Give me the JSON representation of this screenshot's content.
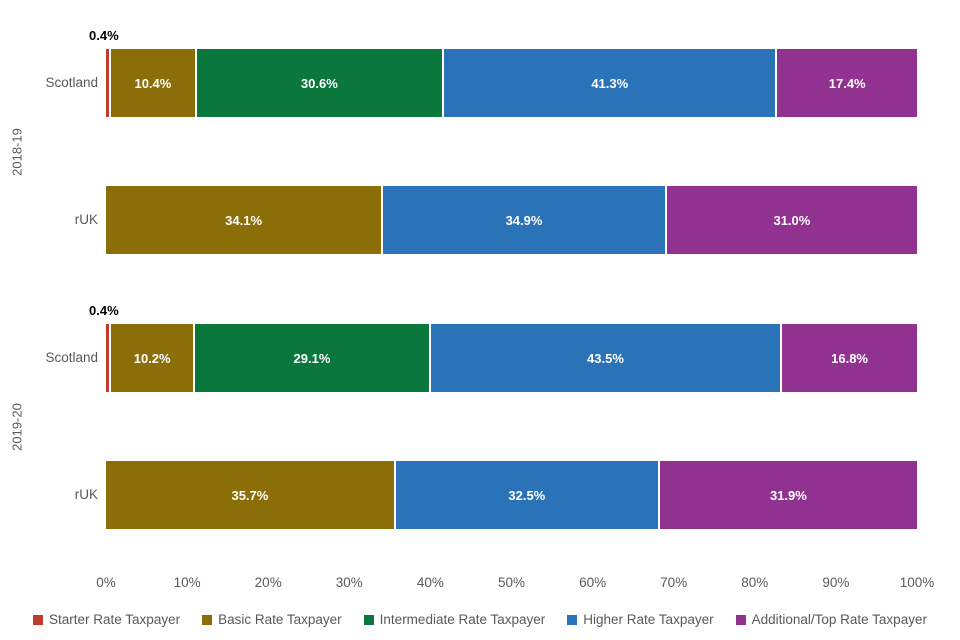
{
  "chart_data": {
    "type": "bar",
    "subtype": "horizontal-stacked",
    "title": "",
    "x_axis": {
      "ticks": [
        "0%",
        "10%",
        "20%",
        "30%",
        "40%",
        "50%",
        "60%",
        "70%",
        "80%",
        "90%",
        "100%"
      ],
      "min": 0,
      "max": 100,
      "unit": "percent",
      "grid": false
    },
    "series": [
      {
        "name": "Starter Rate Taxpayer",
        "color": "#c33c2b"
      },
      {
        "name": "Basic Rate Taxpayer",
        "color": "#8c6e08"
      },
      {
        "name": "Intermediate Rate Taxpayer",
        "color": "#0a783c"
      },
      {
        "name": "Higher Rate Taxpayer",
        "color": "#2b73b8"
      },
      {
        "name": "Additional/Top Rate Taxpayer",
        "color": "#913291"
      }
    ],
    "groups": [
      {
        "label": "2018-19",
        "rows": [
          {
            "label": "Scotland",
            "segments": [
              {
                "series": 0,
                "value": 0.4,
                "label": "0.4%",
                "label_position": "above"
              },
              {
                "series": 1,
                "value": 10.4,
                "label": "10.4%"
              },
              {
                "series": 2,
                "value": 30.6,
                "label": "30.6%"
              },
              {
                "series": 3,
                "value": 41.3,
                "label": "41.3%"
              },
              {
                "series": 4,
                "value": 17.4,
                "label": "17.4%"
              }
            ]
          },
          {
            "label": "rUK",
            "segments": [
              {
                "series": 1,
                "value": 34.1,
                "label": "34.1%"
              },
              {
                "series": 3,
                "value": 34.9,
                "label": "34.9%"
              },
              {
                "series": 4,
                "value": 31.0,
                "label": "31.0%"
              }
            ]
          }
        ]
      },
      {
        "label": "2019-20",
        "rows": [
          {
            "label": "Scotland",
            "segments": [
              {
                "series": 0,
                "value": 0.4,
                "label": "0.4%",
                "label_position": "above"
              },
              {
                "series": 1,
                "value": 10.2,
                "label": "10.2%"
              },
              {
                "series": 2,
                "value": 29.1,
                "label": "29.1%"
              },
              {
                "series": 3,
                "value": 43.5,
                "label": "43.5%"
              },
              {
                "series": 4,
                "value": 16.8,
                "label": "16.8%"
              }
            ]
          },
          {
            "label": "rUK",
            "segments": [
              {
                "series": 1,
                "value": 35.7,
                "label": "35.7%"
              },
              {
                "series": 3,
                "value": 32.5,
                "label": "32.5%"
              },
              {
                "series": 4,
                "value": 31.9,
                "label": "31.9%"
              }
            ]
          }
        ]
      }
    ],
    "legend": {
      "position": "bottom",
      "items": [
        "Starter Rate Taxpayer",
        "Basic Rate Taxpayer",
        "Intermediate Rate Taxpayer",
        "Higher Rate Taxpayer",
        "Additional/Top Rate Taxpayer"
      ]
    },
    "colors": {
      "background": "#ffffff",
      "text_muted": "#595959",
      "label_on_bar": "#ffffff",
      "outside_label": "#000000"
    }
  }
}
